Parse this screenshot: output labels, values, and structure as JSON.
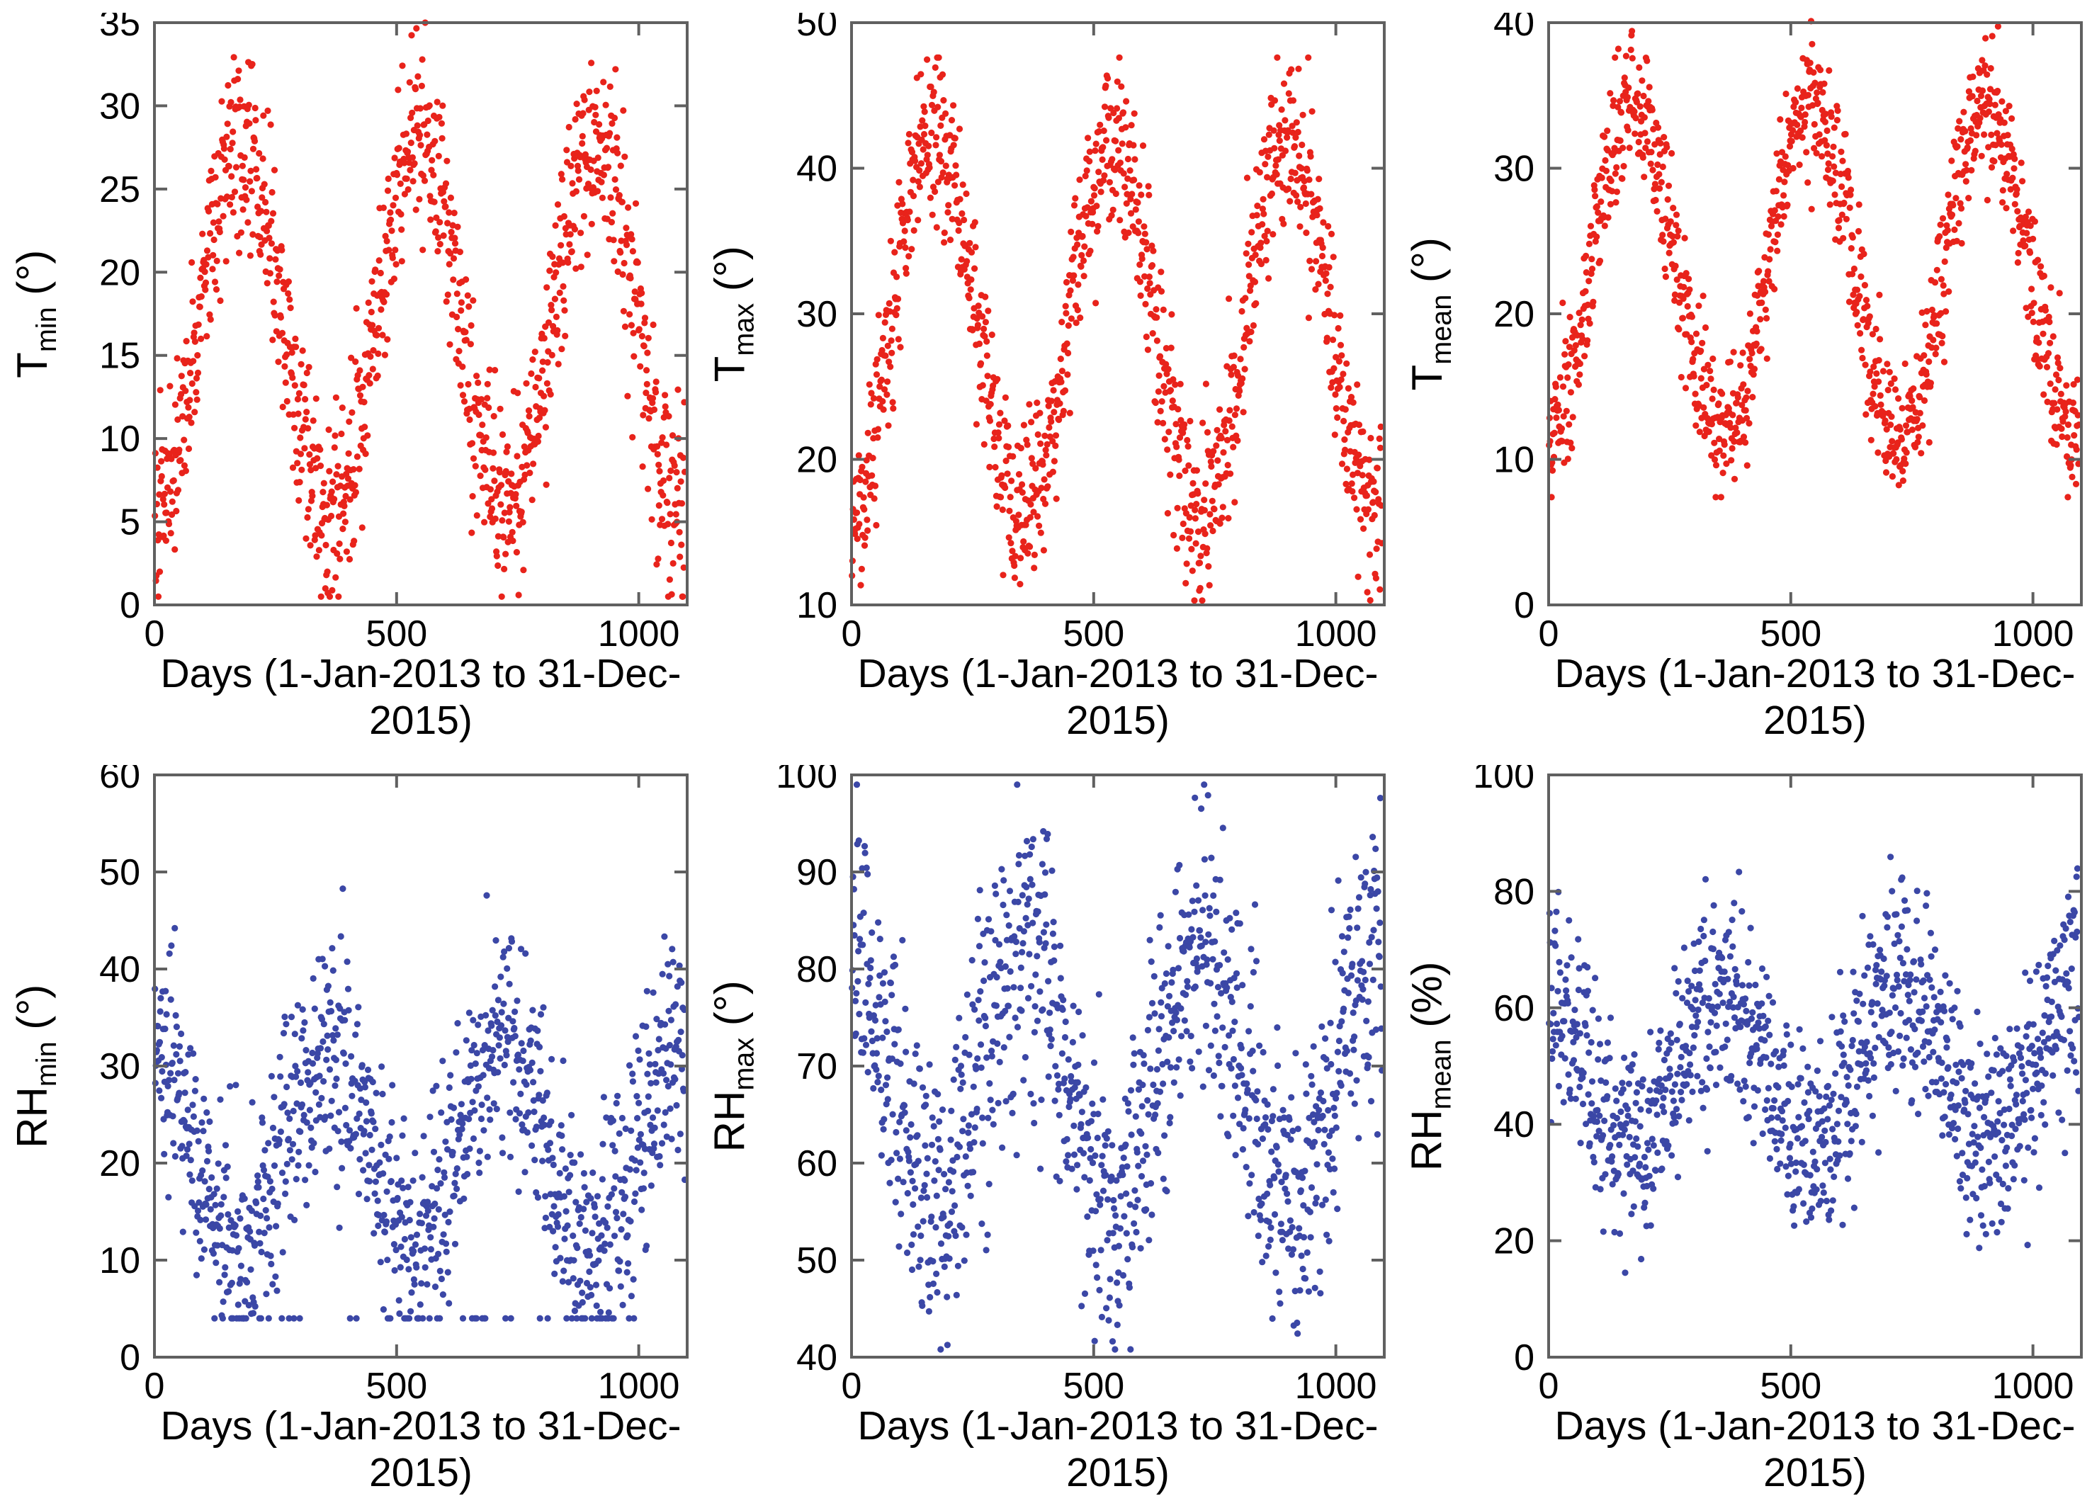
{
  "figure": {
    "background": "#ffffff",
    "axis_color": "#606060",
    "text_color": "#000000",
    "marker_red": "#e8231b",
    "marker_blue": "#3b47a6",
    "marker_radius": 4.6,
    "frame_width": 4,
    "tick_len": 18,
    "tick_width": 4,
    "tick_font_size": 52
  },
  "chart_data": [
    {
      "type": "scatter",
      "id": "tmin",
      "title": "",
      "ylabel_base": "T",
      "ylabel_sub": "min",
      "ylabel_unit": " (°)",
      "xlabel": "Days (1-Jan-2013 to 31-Dec-2015)",
      "color": "#e8231b",
      "xlim": [
        0,
        1100
      ],
      "xticks": [
        0,
        500,
        1000
      ],
      "ylim": [
        0,
        35
      ],
      "yticks": [
        0,
        5,
        10,
        15,
        20,
        25,
        30,
        35
      ],
      "n_points": 1095,
      "x_start": 1,
      "x_end": 1095,
      "legend": null,
      "grid": false,
      "generator": {
        "model": "seasonal-sine-daily",
        "mean": 16.8,
        "amplitude": 11.2,
        "peak_day": 180,
        "period_days": 365,
        "noise_sd": 2.9,
        "clip": [
          0.5,
          35
        ],
        "seed": 101,
        "floor": null
      }
    },
    {
      "type": "scatter",
      "id": "tmax",
      "title": "",
      "ylabel_base": "T",
      "ylabel_sub": "max",
      "ylabel_unit": " (°)",
      "xlabel": "Days (1-Jan-2013 to 31-Dec-2015)",
      "color": "#e8231b",
      "xlim": [
        0,
        1100
      ],
      "xticks": [
        0,
        500,
        1000
      ],
      "ylim": [
        10,
        50
      ],
      "yticks": [
        10,
        20,
        30,
        40,
        50
      ],
      "n_points": 1095,
      "x_start": 1,
      "x_end": 1095,
      "legend": null,
      "grid": false,
      "generator": {
        "model": "seasonal-sine-daily",
        "mean": 29.2,
        "amplitude": 12.6,
        "peak_day": 172,
        "period_days": 365,
        "noise_sd": 3.0,
        "clip": [
          10.3,
          47.6
        ],
        "seed": 202,
        "floor": null
      }
    },
    {
      "type": "scatter",
      "id": "tmean",
      "title": "",
      "ylabel_base": "T",
      "ylabel_sub": "mean",
      "ylabel_unit": " (°)",
      "xlabel": "Days (1-Jan-2013 to 31-Dec-2015)",
      "color": "#e8231b",
      "xlim": [
        0,
        1100
      ],
      "xticks": [
        0,
        500,
        1000
      ],
      "ylim": [
        0,
        40
      ],
      "yticks": [
        0,
        10,
        20,
        30,
        40
      ],
      "n_points": 1095,
      "x_start": 1,
      "x_end": 1095,
      "legend": null,
      "grid": false,
      "generator": {
        "model": "seasonal-sine-daily",
        "mean": 23.0,
        "amplitude": 11.4,
        "peak_day": 176,
        "period_days": 365,
        "noise_sd": 2.4,
        "clip": [
          7.4,
          40.1
        ],
        "seed": 303,
        "floor": null
      }
    },
    {
      "type": "scatter",
      "id": "rhmin",
      "title": "",
      "ylabel_base": "RH",
      "ylabel_sub": "min",
      "ylabel_unit": " (°)",
      "xlabel": "Days (1-Jan-2013 to 31-Dec-2015)",
      "color": "#3b47a6",
      "xlim": [
        0,
        1100
      ],
      "xticks": [
        0,
        500,
        1000
      ],
      "ylim": [
        0,
        60
      ],
      "yticks": [
        0,
        10,
        20,
        30,
        40,
        50,
        60
      ],
      "n_points": 1095,
      "x_start": 1,
      "x_end": 1095,
      "legend": null,
      "grid": false,
      "generator": {
        "model": "seasonal-sine-daily",
        "mean": 21.5,
        "amplitude": 10.5,
        "peak_day": 358,
        "period_days": 365,
        "noise_sd": 6.0,
        "clip": [
          4.0,
          51.5
        ],
        "seed": 404,
        "floor": {
          "fraction": 0.042,
          "value_range": [
            0.3,
            1.8
          ],
          "day_range": [
            70,
            1015
          ]
        }
      }
    },
    {
      "type": "scatter",
      "id": "rhmax",
      "title": "",
      "ylabel_base": "RH",
      "ylabel_sub": "max",
      "ylabel_unit": " (°)",
      "xlabel": "Days (1-Jan-2013 to 31-Dec-2015)",
      "color": "#3b47a6",
      "xlim": [
        0,
        1100
      ],
      "xticks": [
        0,
        500,
        1000
      ],
      "ylim": [
        40,
        100
      ],
      "yticks": [
        40,
        50,
        60,
        70,
        80,
        90,
        100
      ],
      "n_points": 1095,
      "x_start": 1,
      "x_end": 1095,
      "legend": null,
      "grid": false,
      "generator": {
        "model": "seasonal-sine-daily",
        "mean": 69.0,
        "amplitude": 13.0,
        "peak_day": 358,
        "period_days": 365,
        "noise_sd": 7.5,
        "clip": [
          40.8,
          99.0
        ],
        "seed": 505,
        "floor": null
      }
    },
    {
      "type": "scatter",
      "id": "rhmean",
      "title": "",
      "ylabel_base": "RH",
      "ylabel_sub": "mean",
      "ylabel_unit": " (%)",
      "xlabel": "Days (1-Jan-2013 to 31-Dec-2015)",
      "color": "#3b47a6",
      "xlim": [
        0,
        1100
      ],
      "xticks": [
        0,
        500,
        1000
      ],
      "ylim": [
        0,
        100
      ],
      "yticks": [
        0,
        20,
        40,
        60,
        80,
        100
      ],
      "n_points": 1095,
      "x_start": 1,
      "x_end": 1095,
      "legend": null,
      "grid": false,
      "generator": {
        "model": "seasonal-sine-daily",
        "mean": 49.5,
        "amplitude": 13.5,
        "peak_day": 358,
        "period_days": 365,
        "noise_sd": 9.0,
        "clip": [
          11.0,
          95.5
        ],
        "seed": 606,
        "floor": null
      }
    }
  ]
}
